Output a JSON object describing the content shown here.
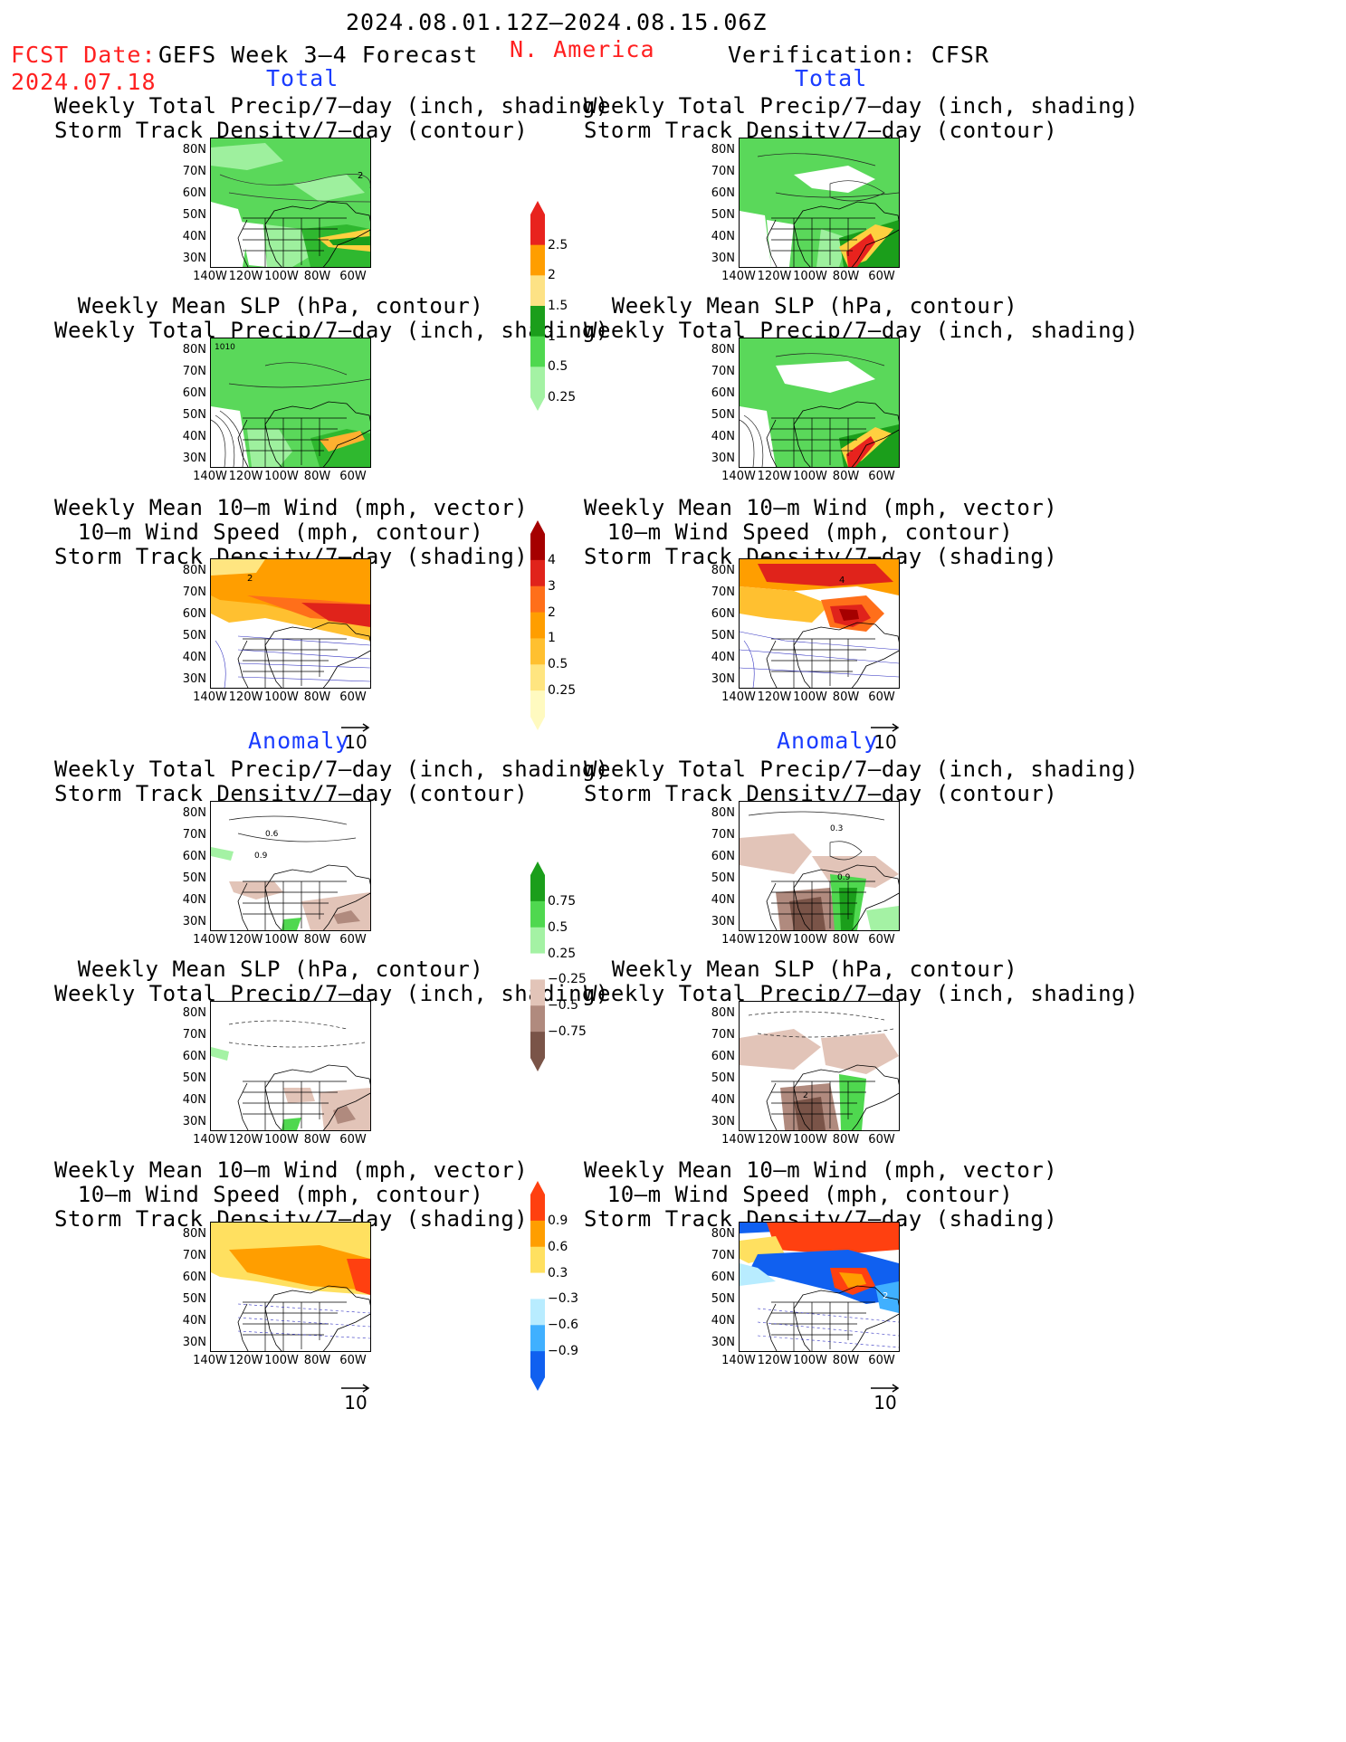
{
  "header": {
    "date_range": "2024.08.01.12Z–2024.08.15.06Z",
    "fcst_label": "FCST Date:",
    "fcst_date": "2024.07.18",
    "forecast_title": "GEFS Week 3–4 Forecast",
    "region": "N. America",
    "verification": "Verification: CFSR"
  },
  "sections": {
    "total": "Total",
    "anomaly": "Anomaly"
  },
  "titles": {
    "precip_storm": [
      "Weekly Total Precip/7–day (inch, shading)",
      "Storm Track Density/7–day (contour)"
    ],
    "slp_precip": [
      "Weekly Mean SLP (hPa, contour)",
      "Weekly Total Precip/7–day (inch, shading)"
    ],
    "wind_storm": [
      "Weekly Mean 10–m Wind (mph, vector)",
      "10–m Wind Speed (mph, contour)",
      "Storm Track Density/7–day (shading)"
    ]
  },
  "axes": {
    "lat_labels": [
      "80N",
      "70N",
      "60N",
      "50N",
      "40N",
      "30N"
    ],
    "lon_labels": [
      "140W",
      "120W",
      "100W",
      "80W",
      "60W"
    ]
  },
  "vector_ref": "10",
  "map_labels": {
    "fc_precip_total": "2",
    "fc_slp_total": "1010",
    "fc_wind_total": "2",
    "ob_wind_total": "4",
    "fc_precip_anom_a": "0.6",
    "fc_precip_anom_b": "0.9",
    "ob_precip_anom_a": "0.3",
    "ob_precip_anom_b": "0.9",
    "ob_slp_anom": "2",
    "ob_wind_anom": "2"
  },
  "colorbars": {
    "precip_total": {
      "labels": [
        "2.5",
        "2",
        "1.5",
        "1",
        "0.5",
        "0.25"
      ],
      "colors": [
        "#e8231e",
        "#ff9e00",
        "#fde285",
        "#1b9e1b",
        "#4fd84f",
        "#a4f2a4"
      ]
    },
    "storm_total": {
      "labels": [
        "4",
        "3",
        "2",
        "1",
        "0.5",
        "0.25"
      ],
      "colors": [
        "#a50000",
        "#e0231b",
        "#ff6f1a",
        "#ff9e00",
        "#ffc030",
        "#ffe580",
        "#fffac0"
      ]
    },
    "precip_anom": {
      "labels": [
        "0.75",
        "0.5",
        "0.25",
        "−0.25",
        "−0.5",
        "−0.75"
      ],
      "colors": [
        "#1b9e1b",
        "#4fd84f",
        "#a4f2a4",
        "#ffffff",
        "#e2c4b8",
        "#b08a7e",
        "#7a5448"
      ]
    },
    "storm_anom": {
      "labels": [
        "0.9",
        "0.6",
        "0.3",
        "−0.3",
        "−0.6",
        "−0.9"
      ],
      "colors": [
        "#ff4010",
        "#ff9e00",
        "#ffe060",
        "#ffffff",
        "#b8ecff",
        "#40b0ff",
        "#1060f0"
      ]
    }
  }
}
